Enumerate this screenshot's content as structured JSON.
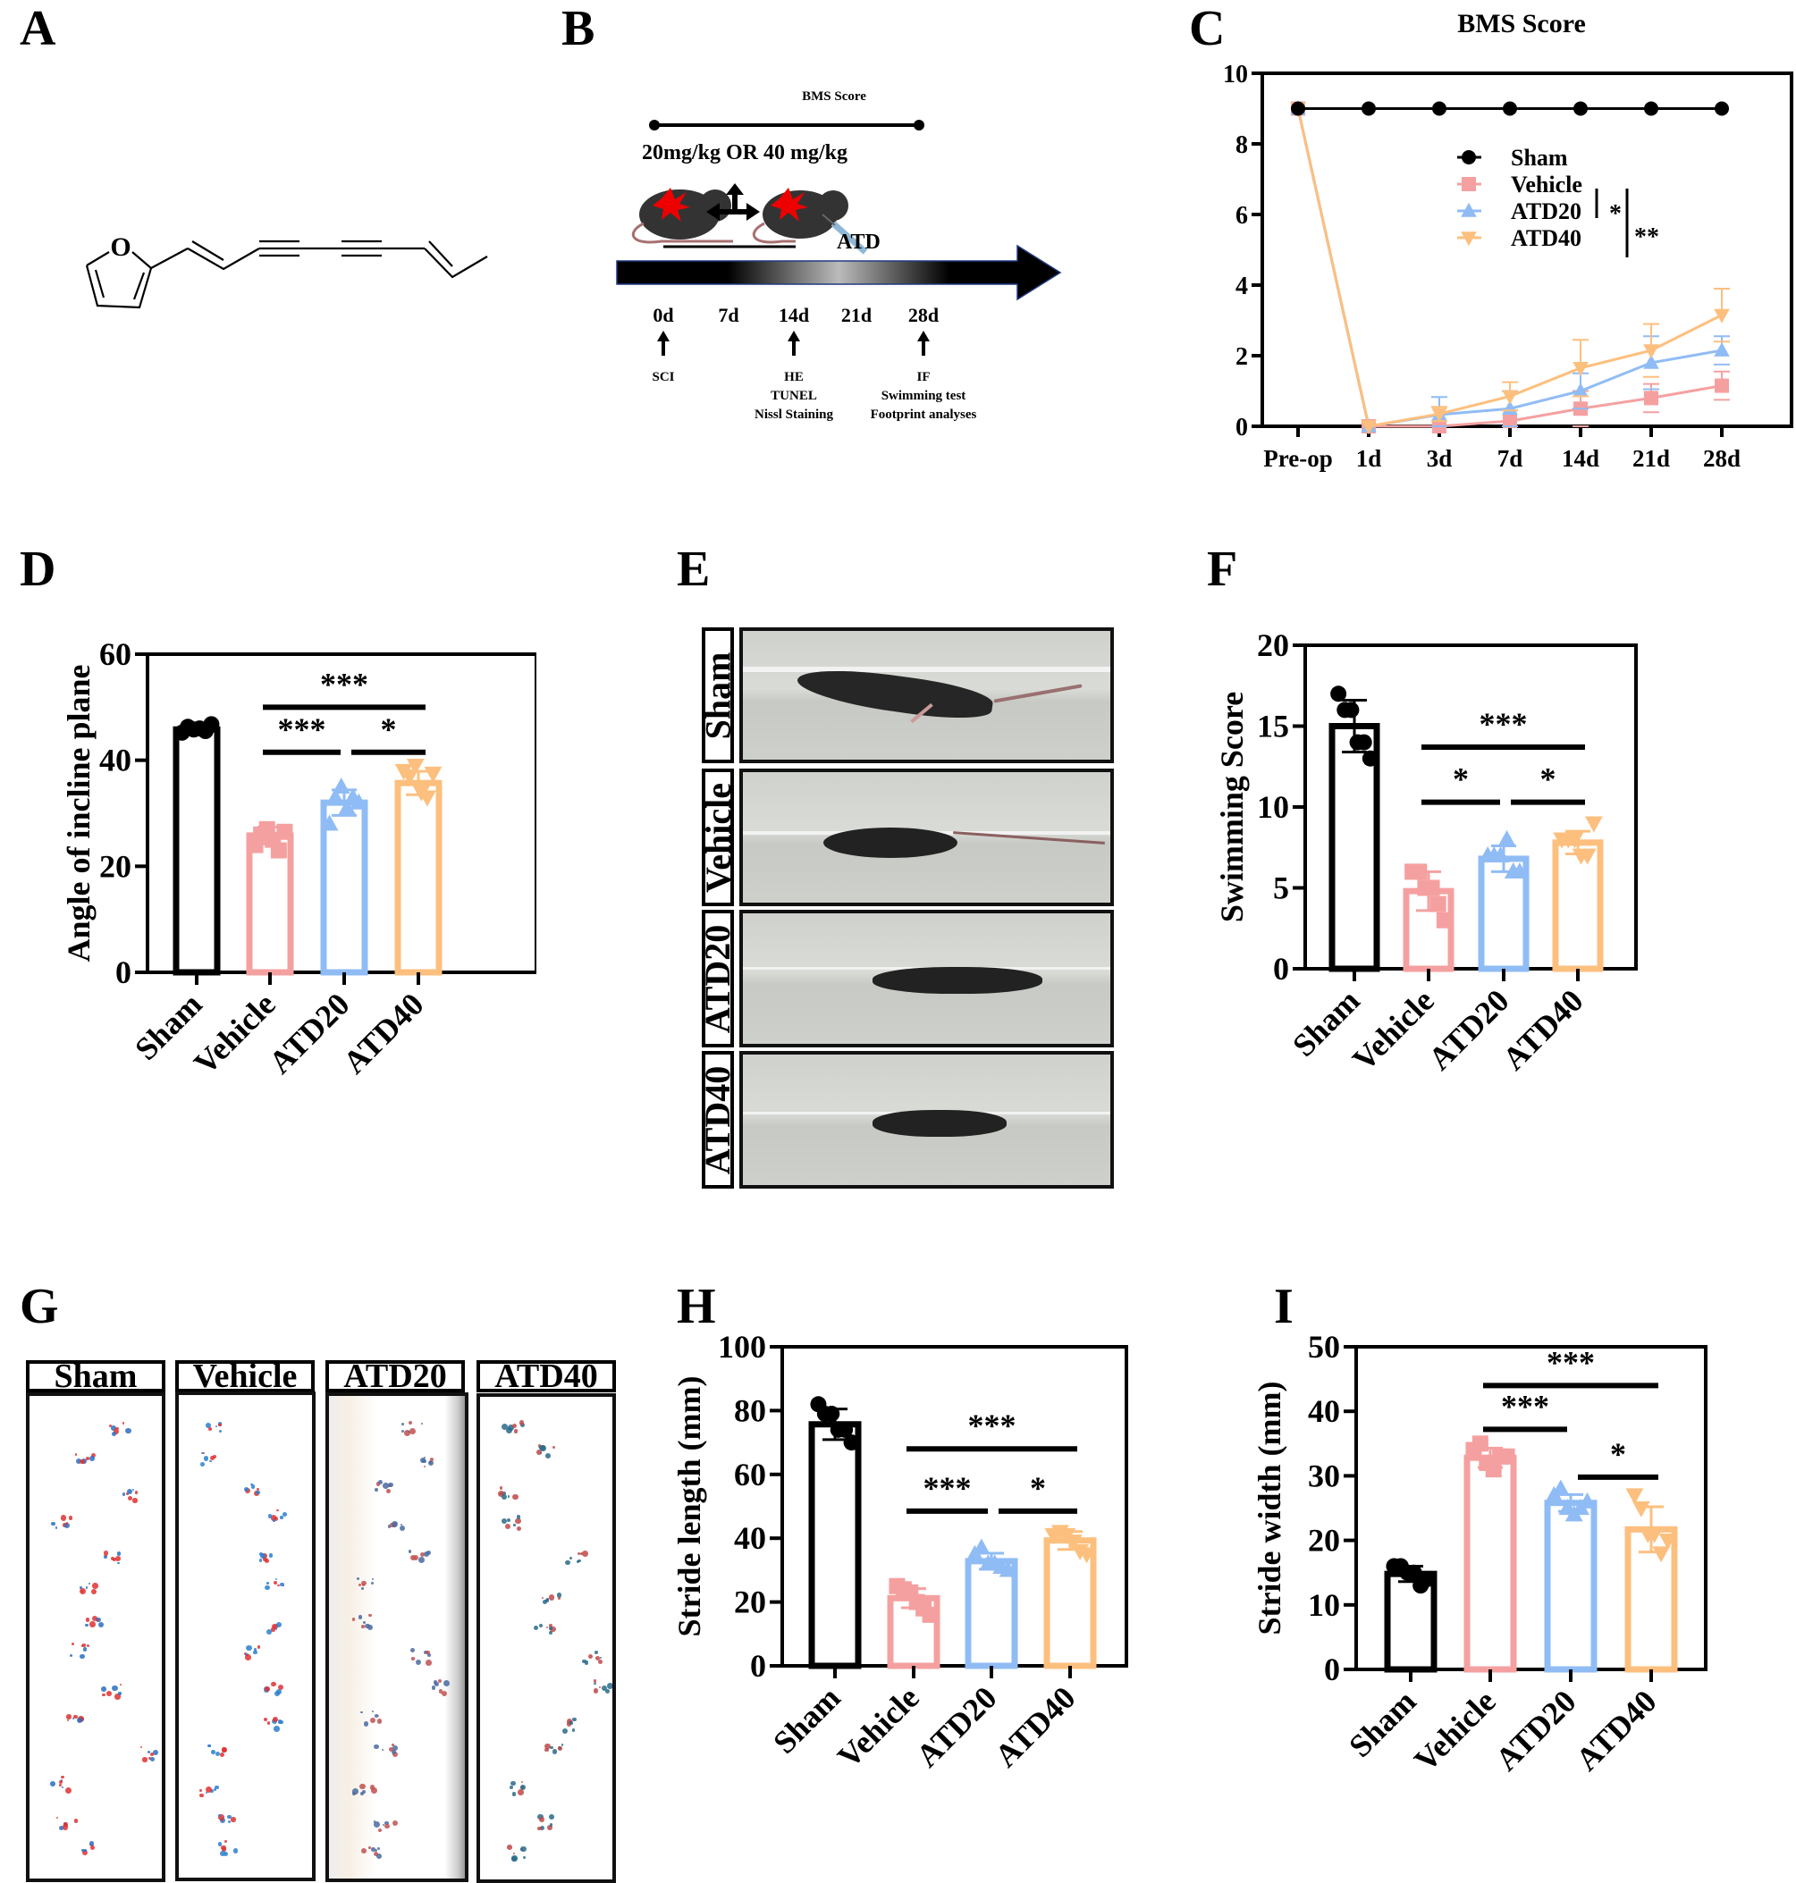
{
  "panels": {
    "A": "A",
    "B": "B",
    "C": "C",
    "D": "D",
    "E": "E",
    "F": "F",
    "G": "G",
    "H": "H",
    "I": "I"
  },
  "colors": {
    "sham": "#000000",
    "vehicle": "#f5a0a0",
    "atd20": "#90bcf5",
    "atd40": "#fdbf7e"
  },
  "timeline": {
    "top_label": "BMS Score",
    "dose_label": "20mg/kg OR 40 mg/kg",
    "drug_label": "ATD",
    "days": [
      "0d",
      "7d",
      "14d",
      "21d",
      "28d"
    ],
    "events": [
      {
        "day": "0d",
        "lines": [
          "SCI"
        ]
      },
      {
        "day": "14d",
        "lines": [
          "HE",
          "TUNEL",
          "Nissl Staining"
        ]
      },
      {
        "day": "28d",
        "lines": [
          "IF",
          "Swimming test",
          "Footprint analyses"
        ]
      }
    ]
  },
  "molecule": {
    "atom_label": "O"
  },
  "swim_labels": [
    "Sham",
    "Vehicle",
    "ATD20",
    "ATD40"
  ],
  "footprint_labels": [
    "Sham",
    "Vehicle",
    "ATD20",
    "ATD40"
  ],
  "chart_data": [
    {
      "id": "C",
      "type": "line",
      "title": "BMS Score",
      "xlabel": "",
      "ylabel": "",
      "categories": [
        "Pre-op",
        "1d",
        "3d",
        "7d",
        "14d",
        "21d",
        "28d"
      ],
      "ylim": [
        0,
        10
      ],
      "yticks": [
        0,
        2,
        4,
        6,
        8,
        10
      ],
      "legend_position": "center-right",
      "series": [
        {
          "name": "Sham",
          "color": "#000000",
          "marker": "circle",
          "values": [
            9,
            9,
            9,
            9,
            9,
            9,
            9
          ],
          "err": [
            0,
            0,
            0,
            0,
            0,
            0,
            0
          ]
        },
        {
          "name": "Vehicle",
          "color": "#f5a0a0",
          "marker": "square",
          "values": [
            9,
            0,
            0,
            0.15,
            0.5,
            0.8,
            1.15
          ],
          "err": [
            0,
            0,
            0,
            0.3,
            0.5,
            0.4,
            0.4
          ]
        },
        {
          "name": "ATD20",
          "color": "#90bcf5",
          "marker": "triangle-up",
          "values": [
            9,
            0,
            0.33,
            0.5,
            1.0,
            1.8,
            2.15
          ],
          "err": [
            0,
            0,
            0.5,
            0.5,
            0.5,
            0.75,
            0.4
          ]
        },
        {
          "name": "ATD40",
          "color": "#fdbf7e",
          "marker": "triangle-down",
          "values": [
            9,
            0,
            0.35,
            0.85,
            1.65,
            2.15,
            3.15
          ],
          "err": [
            0,
            0,
            0.2,
            0.4,
            0.8,
            0.75,
            0.75
          ]
        }
      ],
      "significance": [
        {
          "text": "*",
          "between": [
            "Vehicle",
            "ATD20"
          ]
        },
        {
          "text": "**",
          "between": [
            "Vehicle",
            "ATD40"
          ]
        }
      ]
    },
    {
      "id": "D",
      "type": "bar",
      "title": "",
      "xlabel": "",
      "ylabel": "Angle of incline plane",
      "categories": [
        "Sham",
        "Vehicle",
        "ATD20",
        "ATD40"
      ],
      "ylim": [
        0,
        60
      ],
      "yticks": [
        0,
        20,
        40,
        60
      ],
      "values": [
        45.8,
        25.8,
        32.0,
        35.7
      ],
      "sd": [
        0.6,
        1.6,
        2.4,
        2.2
      ],
      "points": [
        [
          45.2,
          46.3,
          45.8,
          46.0,
          45.5,
          46.8
        ],
        [
          24,
          26,
          27,
          25,
          23,
          26.5
        ],
        [
          28,
          33,
          35,
          31,
          33,
          32
        ],
        [
          38,
          37,
          39,
          34,
          33,
          37.5
        ]
      ],
      "significance": [
        {
          "text": "***",
          "from": 1,
          "to": 3,
          "y": 50
        },
        {
          "text": "***",
          "from": 1,
          "to": 2,
          "y": 41.5
        },
        {
          "text": "*",
          "from": 2,
          "to": 3,
          "y": 41.5
        }
      ]
    },
    {
      "id": "F",
      "type": "bar",
      "title": "",
      "xlabel": "",
      "ylabel": "Swimming Score",
      "categories": [
        "Sham",
        "Vehicle",
        "ATD20",
        "ATD40"
      ],
      "ylim": [
        0,
        20
      ],
      "yticks": [
        0,
        5,
        10,
        15,
        20
      ],
      "values": [
        15.0,
        4.8,
        6.8,
        7.8
      ],
      "sd": [
        1.6,
        1.2,
        0.8,
        0.7
      ],
      "points": [
        [
          17,
          16,
          16,
          14,
          14,
          13
        ],
        [
          6,
          6,
          5,
          5,
          4,
          3
        ],
        [
          7,
          7,
          7,
          8,
          6,
          6
        ],
        [
          8,
          8,
          8,
          7,
          7,
          9
        ]
      ],
      "significance": [
        {
          "text": "***",
          "from": 1,
          "to": 3,
          "y": 13.7
        },
        {
          "text": "*",
          "from": 1,
          "to": 2,
          "y": 10.3
        },
        {
          "text": "*",
          "from": 2,
          "to": 3,
          "y": 10.3
        }
      ]
    },
    {
      "id": "H",
      "type": "bar",
      "title": "",
      "xlabel": "",
      "ylabel": "Stride length (mm)",
      "categories": [
        "Sham",
        "Vehicle",
        "ATD20",
        "ATD40"
      ],
      "ylim": [
        0,
        100
      ],
      "yticks": [
        0,
        20,
        40,
        60,
        80,
        100
      ],
      "values": [
        75.7,
        21.2,
        32.8,
        39.3
      ],
      "sd": [
        4.8,
        3.0,
        2.5,
        2.8
      ],
      "points": [
        [
          82,
          79,
          79,
          74,
          74,
          70
        ],
        [
          25,
          24,
          23,
          20,
          18,
          16
        ],
        [
          35,
          37,
          32,
          32,
          31,
          30
        ],
        [
          41,
          42,
          41,
          39,
          36,
          35
        ]
      ],
      "significance": [
        {
          "text": "***",
          "from": 1,
          "to": 3,
          "y": 68
        },
        {
          "text": "***",
          "from": 1,
          "to": 2,
          "y": 48.5
        },
        {
          "text": "*",
          "from": 2,
          "to": 3,
          "y": 48.5
        }
      ]
    },
    {
      "id": "I",
      "type": "bar",
      "title": "",
      "xlabel": "",
      "ylabel": "Stride width (mm)",
      "categories": [
        "Sham",
        "Vehicle",
        "ATD20",
        "ATD40"
      ],
      "ylim": [
        0,
        50
      ],
      "yticks": [
        0,
        10,
        20,
        30,
        40,
        50
      ],
      "values": [
        14.8,
        32.8,
        25.8,
        21.7
      ],
      "sd": [
        1.2,
        1.5,
        1.3,
        3.5
      ],
      "points": [
        [
          16,
          16,
          15,
          15,
          13,
          14
        ],
        [
          34,
          35,
          32,
          31,
          33,
          33
        ],
        [
          27,
          28,
          25,
          24,
          25,
          26
        ],
        [
          27,
          25,
          21,
          21,
          18,
          20
        ]
      ],
      "significance": [
        {
          "text": "***",
          "from": 1,
          "to": 3,
          "y": 44
        },
        {
          "text": "***",
          "from": 1,
          "to": 2,
          "y": 37.2
        },
        {
          "text": "*",
          "from": 2,
          "to": 3,
          "y": 29.8
        }
      ]
    }
  ]
}
